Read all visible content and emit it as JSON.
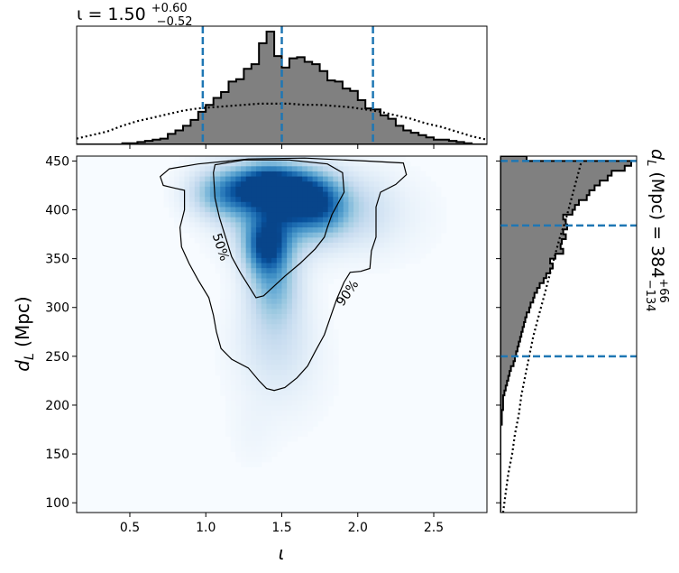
{
  "chart_data": {
    "type": "heatmap",
    "joint": {
      "x_param": "ι",
      "y_param": "d_L (Mpc)",
      "xlim": [
        0.15,
        2.85
      ],
      "ylim": [
        90,
        455
      ],
      "x_ticks": [
        0.5,
        1.0,
        1.5,
        2.0,
        2.5
      ],
      "x_tick_labels": [
        "0.5",
        "1.0",
        "1.5",
        "2.0",
        "2.5"
      ],
      "y_ticks": [
        100,
        150,
        200,
        250,
        300,
        350,
        400,
        450
      ],
      "y_tick_labels": [
        "100",
        "150",
        "200",
        "250",
        "300",
        "350",
        "400",
        "450"
      ],
      "xlabel": "ι",
      "ylabel_main": "d",
      "ylabel_sub": "L",
      "ylabel_unit": " (Mpc)",
      "colormap": "Blues",
      "density_blobs": [
        {
          "x": 1.4,
          "y": 425,
          "sx": 0.13,
          "sy": 16,
          "w": 1.0
        },
        {
          "x": 1.62,
          "y": 415,
          "sx": 0.12,
          "sy": 18,
          "w": 0.8
        },
        {
          "x": 1.4,
          "y": 362,
          "sx": 0.1,
          "sy": 20,
          "w": 0.85
        },
        {
          "x": 1.17,
          "y": 418,
          "sx": 0.12,
          "sy": 18,
          "w": 0.55
        },
        {
          "x": 1.8,
          "y": 405,
          "sx": 0.12,
          "sy": 22,
          "w": 0.55
        },
        {
          "x": 1.5,
          "y": 395,
          "sx": 0.22,
          "sy": 28,
          "w": 0.6
        },
        {
          "x": 1.45,
          "y": 320,
          "sx": 0.12,
          "sy": 25,
          "w": 0.45
        },
        {
          "x": 1.45,
          "y": 270,
          "sx": 0.17,
          "sy": 30,
          "w": 0.2
        },
        {
          "x": 1.0,
          "y": 418,
          "sx": 0.12,
          "sy": 18,
          "w": 0.25
        },
        {
          "x": 2.05,
          "y": 400,
          "sx": 0.14,
          "sy": 28,
          "w": 0.2
        },
        {
          "x": 1.5,
          "y": 225,
          "sx": 0.2,
          "sy": 35,
          "w": 0.08
        },
        {
          "x": 2.3,
          "y": 395,
          "sx": 0.18,
          "sy": 30,
          "w": 0.06
        },
        {
          "x": 1.3,
          "y": 170,
          "sx": 0.1,
          "sy": 25,
          "w": 0.04
        }
      ],
      "contours": [
        {
          "level": "50%",
          "points": [
            [
              1.05,
              438
            ],
            [
              1.06,
              446
            ],
            [
              1.25,
              451
            ],
            [
              1.55,
              451
            ],
            [
              1.8,
              447
            ],
            [
              1.9,
              438
            ],
            [
              1.91,
              418
            ],
            [
              1.83,
              395
            ],
            [
              1.8,
              382
            ],
            [
              1.78,
              372
            ],
            [
              1.72,
              360
            ],
            [
              1.62,
              345
            ],
            [
              1.52,
              332
            ],
            [
              1.45,
              322
            ],
            [
              1.38,
              312
            ],
            [
              1.33,
              310
            ],
            [
              1.29,
              320
            ],
            [
              1.23,
              335
            ],
            [
              1.17,
              352
            ],
            [
              1.13,
              372
            ],
            [
              1.09,
              392
            ],
            [
              1.06,
              412
            ],
            [
              1.05,
              438
            ]
          ]
        },
        {
          "level": "90%",
          "points": [
            [
              1.28,
              452
            ],
            [
              1.65,
              453
            ],
            [
              2.05,
              450
            ],
            [
              2.3,
              448
            ],
            [
              2.32,
              436
            ],
            [
              2.25,
              426
            ],
            [
              2.15,
              418
            ],
            [
              2.12,
              403
            ],
            [
              2.12,
              372
            ],
            [
              2.09,
              358
            ],
            [
              2.08,
              340
            ],
            [
              2.02,
              337
            ],
            [
              1.95,
              336
            ],
            [
              1.91,
              326
            ],
            [
              1.86,
              308
            ],
            [
              1.82,
              290
            ],
            [
              1.78,
              272
            ],
            [
              1.72,
              255
            ],
            [
              1.67,
              240
            ],
            [
              1.6,
              228
            ],
            [
              1.52,
              218
            ],
            [
              1.45,
              215
            ],
            [
              1.4,
              217
            ],
            [
              1.35,
              225
            ],
            [
              1.28,
              238
            ],
            [
              1.17,
              247
            ],
            [
              1.1,
              258
            ],
            [
              1.07,
              275
            ],
            [
              1.05,
              292
            ],
            [
              1.02,
              310
            ],
            [
              0.95,
              328
            ],
            [
              0.89,
              345
            ],
            [
              0.84,
              362
            ],
            [
              0.83,
              382
            ],
            [
              0.86,
              400
            ],
            [
              0.86,
              420
            ],
            [
              0.8,
              422
            ],
            [
              0.72,
              425
            ],
            [
              0.7,
              434
            ],
            [
              0.76,
              442
            ],
            [
              0.95,
              447
            ],
            [
              1.28,
              452
            ]
          ]
        }
      ]
    },
    "top_marginal": {
      "param": "ι",
      "title_prefix": "ι = 1.50",
      "title_sup": "+0.60",
      "title_sub": "−0.52",
      "lines": [
        0.98,
        1.5,
        2.1
      ],
      "posterior_hist": {
        "bin_edges": [
          0.15,
          0.2,
          0.25,
          0.3,
          0.35,
          0.4,
          0.45,
          0.5,
          0.55,
          0.6,
          0.65,
          0.7,
          0.75,
          0.8,
          0.85,
          0.9,
          0.95,
          1.0,
          1.05,
          1.1,
          1.15,
          1.2,
          1.25,
          1.3,
          1.35,
          1.4,
          1.45,
          1.5,
          1.55,
          1.6,
          1.65,
          1.7,
          1.75,
          1.8,
          1.85,
          1.9,
          1.95,
          2.0,
          2.05,
          2.1,
          2.15,
          2.2,
          2.25,
          2.3,
          2.35,
          2.4,
          2.45,
          2.5,
          2.55,
          2.6,
          2.65,
          2.7,
          2.75,
          2.8,
          2.85
        ],
        "density": [
          0,
          0,
          0,
          0,
          0,
          0,
          0.01,
          0.01,
          0.02,
          0.03,
          0.04,
          0.05,
          0.09,
          0.12,
          0.16,
          0.21,
          0.28,
          0.34,
          0.4,
          0.45,
          0.54,
          0.56,
          0.65,
          0.69,
          0.87,
          0.97,
          0.76,
          0.66,
          0.74,
          0.75,
          0.71,
          0.69,
          0.63,
          0.55,
          0.54,
          0.48,
          0.46,
          0.38,
          0.31,
          0.3,
          0.25,
          0.22,
          0.16,
          0.12,
          0.1,
          0.08,
          0.06,
          0.04,
          0.04,
          0.03,
          0.02,
          0.01,
          0,
          0
        ]
      },
      "prior_curve": {
        "x": [
          0.15,
          0.25,
          0.35,
          0.45,
          0.55,
          0.65,
          0.75,
          0.85,
          0.95,
          1.05,
          1.15,
          1.25,
          1.35,
          1.45,
          1.55,
          1.65,
          1.75,
          1.85,
          1.95,
          2.05,
          2.15,
          2.25,
          2.35,
          2.45,
          2.55,
          2.65,
          2.75,
          2.85
        ],
        "y": [
          0.05,
          0.08,
          0.11,
          0.16,
          0.2,
          0.23,
          0.26,
          0.29,
          0.31,
          0.32,
          0.33,
          0.34,
          0.35,
          0.35,
          0.35,
          0.34,
          0.34,
          0.33,
          0.32,
          0.3,
          0.28,
          0.25,
          0.22,
          0.18,
          0.15,
          0.11,
          0.07,
          0.04
        ]
      }
    },
    "right_marginal": {
      "param": "d_L (Mpc)",
      "label_main": "d",
      "label_sub": "L",
      "label_rest": " (Mpc) = 384",
      "label_sup": "+66",
      "label_subscript": "−134",
      "lines": [
        450,
        384,
        250
      ],
      "posterior_hist": {
        "bin_edges": [
          90,
          95,
          100,
          105,
          110,
          115,
          120,
          125,
          130,
          135,
          140,
          145,
          150,
          155,
          160,
          165,
          170,
          175,
          180,
          185,
          190,
          195,
          200,
          205,
          210,
          215,
          220,
          225,
          230,
          235,
          240,
          245,
          250,
          255,
          260,
          265,
          270,
          275,
          280,
          285,
          290,
          295,
          300,
          305,
          310,
          315,
          320,
          325,
          330,
          335,
          340,
          345,
          350,
          355,
          360,
          365,
          370,
          375,
          380,
          385,
          390,
          395,
          400,
          405,
          410,
          415,
          420,
          425,
          430,
          435,
          440,
          445,
          450,
          455
        ],
        "density": [
          0,
          0,
          0,
          0,
          0,
          0,
          0,
          0,
          0,
          0,
          0,
          0,
          0,
          0,
          0,
          0,
          0,
          0,
          0.01,
          0.01,
          0.01,
          0.02,
          0.02,
          0.02,
          0.03,
          0.04,
          0.05,
          0.06,
          0.07,
          0.08,
          0.1,
          0.11,
          0.12,
          0.13,
          0.14,
          0.15,
          0.16,
          0.17,
          0.18,
          0.19,
          0.2,
          0.22,
          0.23,
          0.25,
          0.26,
          0.28,
          0.3,
          0.33,
          0.35,
          0.38,
          0.4,
          0.38,
          0.42,
          0.48,
          0.46,
          0.47,
          0.5,
          0.48,
          0.51,
          0.5,
          0.48,
          0.55,
          0.57,
          0.6,
          0.66,
          0.68,
          0.72,
          0.76,
          0.82,
          0.85,
          0.95,
          1.0,
          0.2
        ]
      },
      "prior_curve": {
        "y": [
          90,
          110,
          130,
          150,
          170,
          190,
          210,
          230,
          250,
          270,
          290,
          310,
          330,
          350,
          370,
          390,
          410,
          430,
          450
        ],
        "x": [
          0.02,
          0.04,
          0.06,
          0.09,
          0.11,
          0.14,
          0.16,
          0.19,
          0.22,
          0.25,
          0.29,
          0.33,
          0.37,
          0.41,
          0.45,
          0.5,
          0.54,
          0.58,
          0.62
        ]
      }
    }
  }
}
